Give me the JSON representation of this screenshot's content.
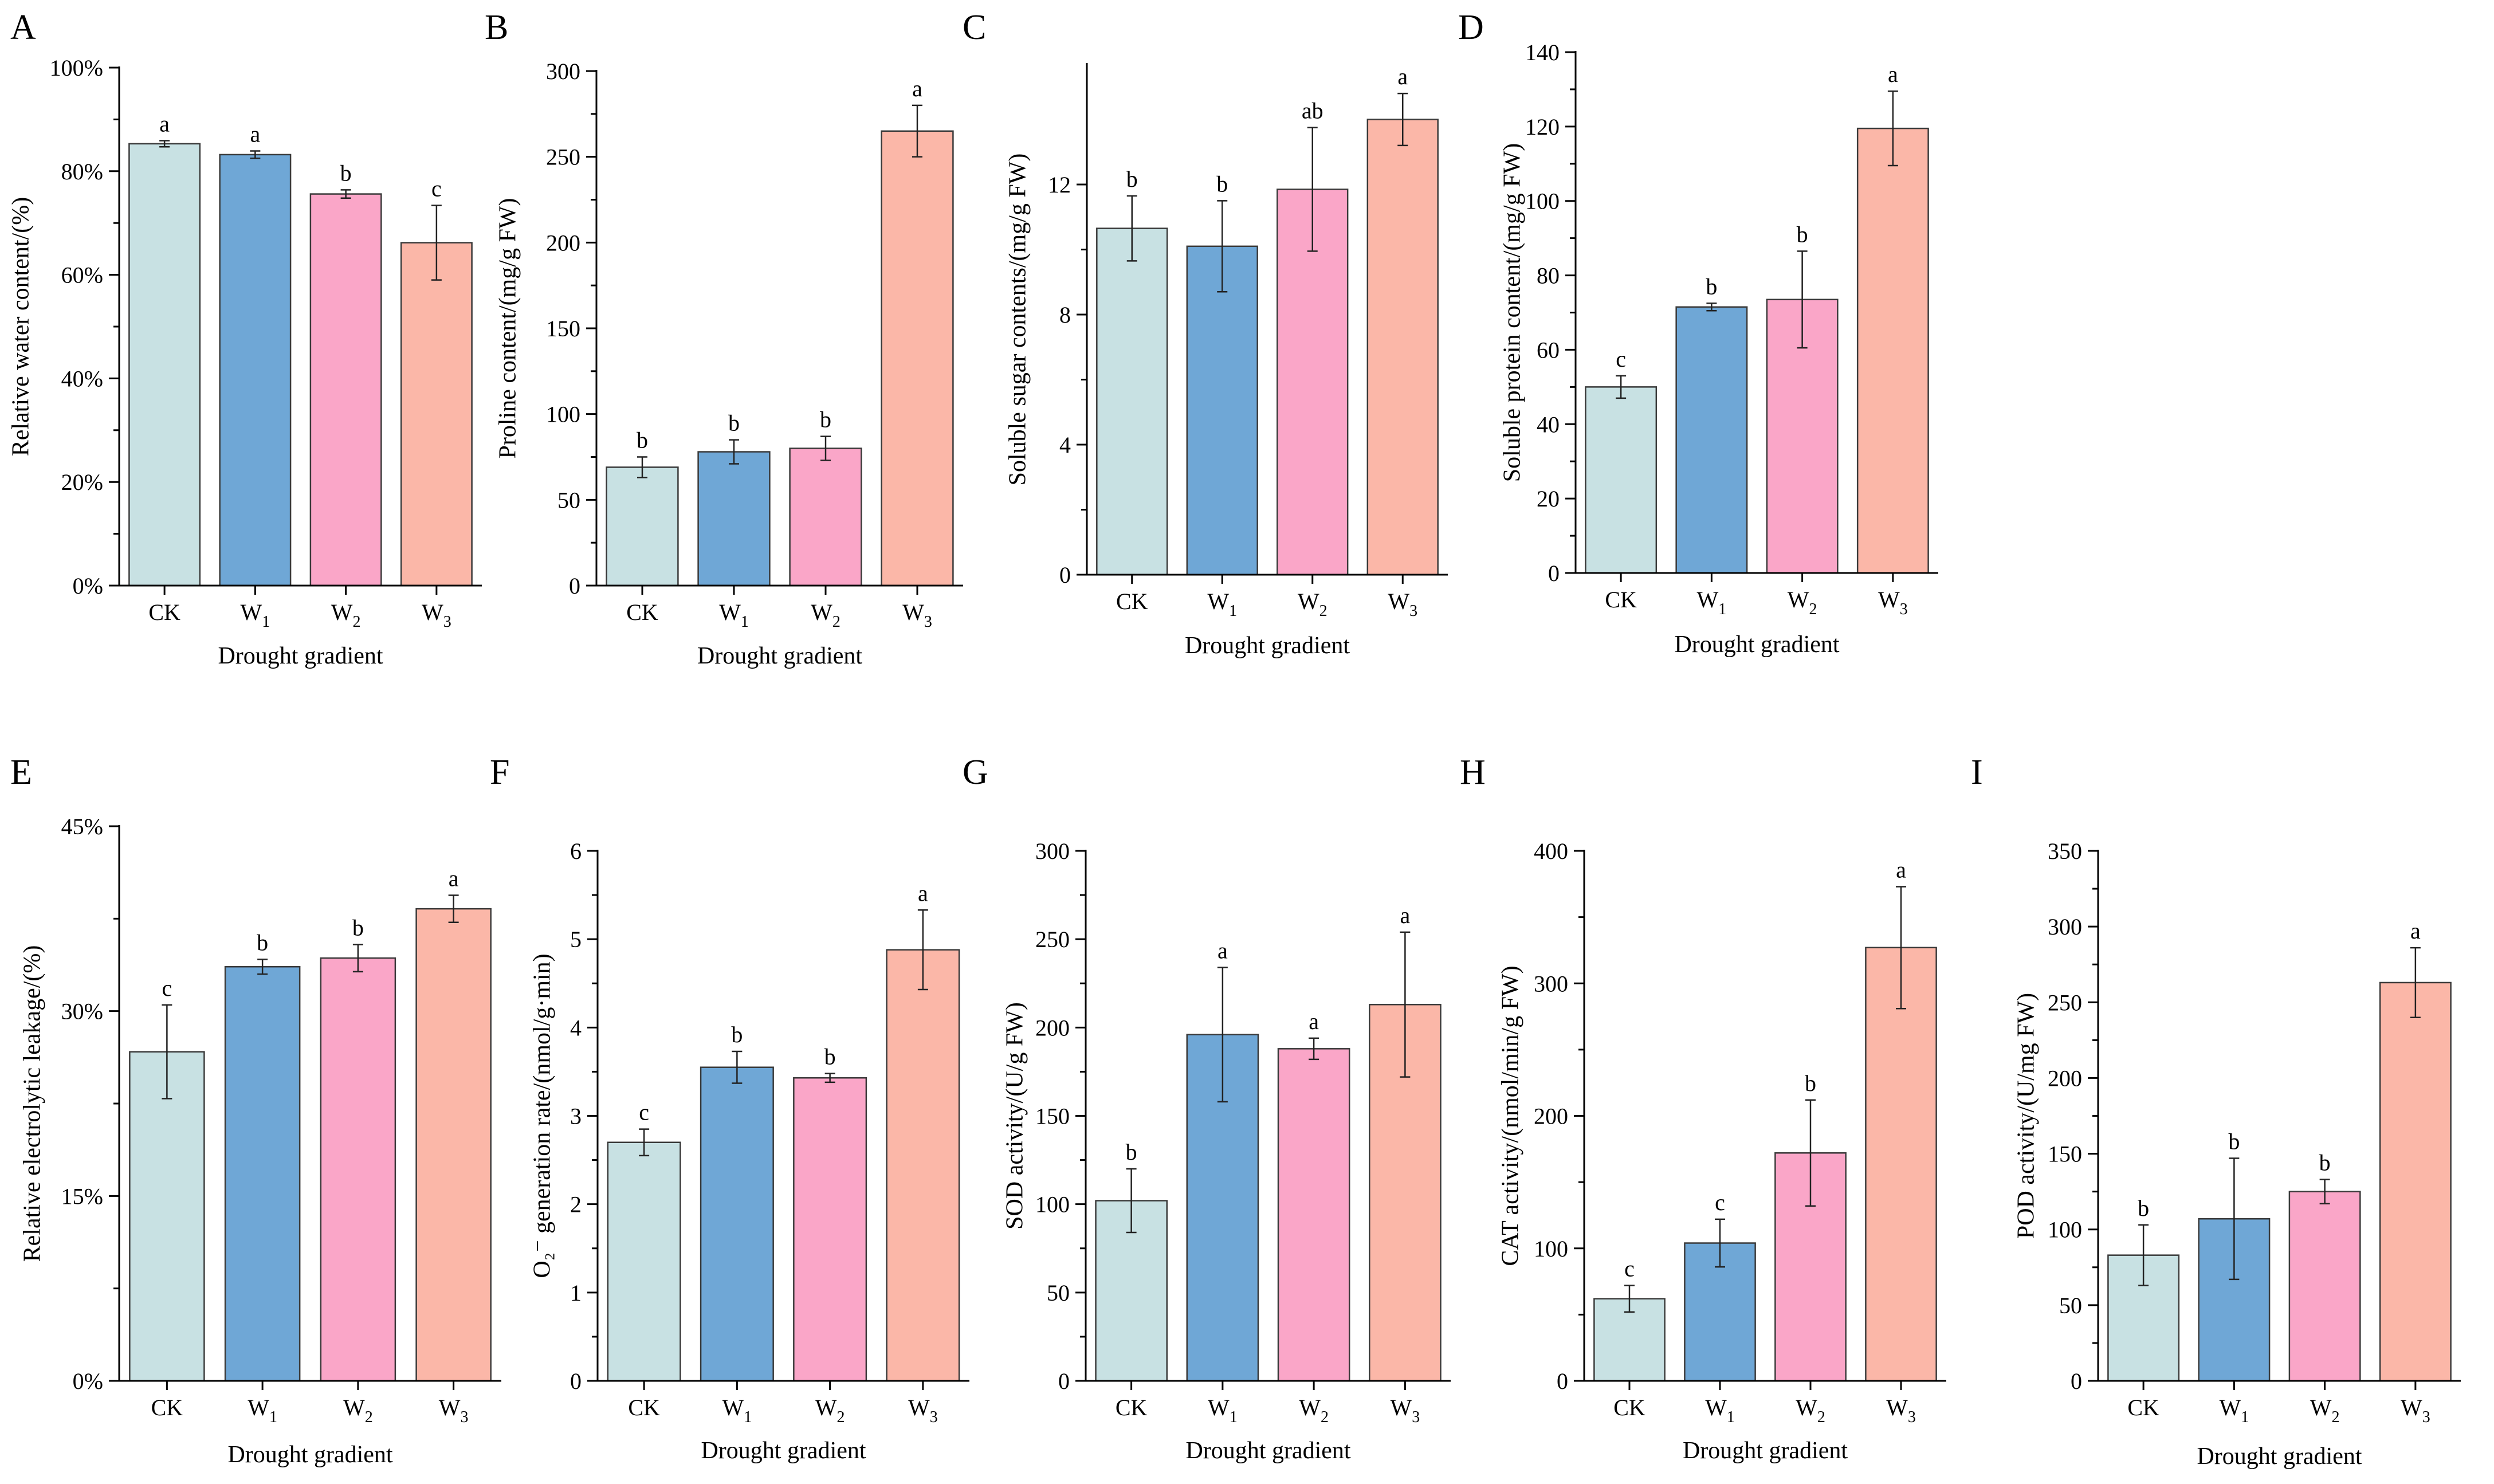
{
  "colors": {
    "CK": "#c8e1e3",
    "W1": "#6fa7d6",
    "W2": "#faa6c8",
    "W3": "#fbb7a8",
    "edge": "#3a3a3a"
  },
  "category_labels": [
    {
      "base": "CK",
      "sub": ""
    },
    {
      "base": "W",
      "sub": "1"
    },
    {
      "base": "W",
      "sub": "2"
    },
    {
      "base": "W",
      "sub": "3"
    }
  ],
  "chart_data": [
    {
      "id": "A",
      "letter": "A",
      "type": "bar",
      "categories": [
        "CK",
        "W1",
        "W2",
        "W3"
      ],
      "values": [
        85.3,
        83.2,
        75.6,
        66.2
      ],
      "errors": [
        0.6,
        0.7,
        0.8,
        7.2
      ],
      "significance": [
        "a",
        "a",
        "b",
        "c"
      ],
      "ylabel": "Relative water content/(%)",
      "xlabel": "Drought gradient",
      "ylim": [
        0,
        100
      ],
      "ticks": [
        0,
        20,
        40,
        60,
        80,
        100
      ],
      "tick_labels": [
        "0%",
        "20%",
        "40%",
        "60%",
        "80%",
        "100%"
      ]
    },
    {
      "id": "B",
      "letter": "B",
      "type": "bar",
      "categories": [
        "CK",
        "W1",
        "W2",
        "W3"
      ],
      "values": [
        69,
        78,
        80,
        265
      ],
      "errors": [
        6,
        7,
        7,
        15
      ],
      "significance": [
        "b",
        "b",
        "b",
        "a"
      ],
      "ylabel": "Proline content/(mg/g FW)",
      "xlabel": "Drought gradient",
      "ylim": [
        0,
        300
      ],
      "ticks": [
        0,
        50,
        100,
        150,
        200,
        250,
        300
      ],
      "tick_labels": [
        "0",
        "50",
        "100",
        "150",
        "200",
        "250",
        "300"
      ]
    },
    {
      "id": "C",
      "letter": "C",
      "type": "bar",
      "categories": [
        "CK",
        "W1",
        "W2",
        "W3"
      ],
      "values": [
        10.65,
        10.1,
        11.85,
        14.0
      ],
      "errors": [
        1.0,
        1.4,
        1.9,
        0.8
      ],
      "significance": [
        "b",
        "b",
        "ab",
        "a"
      ],
      "ylabel": "Soluble sugar contents/(mg/g FW)",
      "xlabel": "Drought gradient",
      "ylim": [
        0,
        15.7
      ],
      "ticks": [
        0,
        4,
        8,
        12
      ],
      "tick_labels": [
        "0",
        "4",
        "8",
        "12"
      ]
    },
    {
      "id": "D",
      "letter": "D",
      "type": "bar",
      "categories": [
        "CK",
        "W1",
        "W2",
        "W3"
      ],
      "values": [
        50,
        71.5,
        73.5,
        119.5
      ],
      "errors": [
        3,
        1,
        13,
        10
      ],
      "significance": [
        "c",
        "b",
        "b",
        "a"
      ],
      "ylabel": "Soluble protein content/(mg/g FW)",
      "xlabel": "Drought gradient",
      "ylim": [
        0,
        140
      ],
      "ticks": [
        0,
        20,
        40,
        60,
        80,
        100,
        120,
        140
      ],
      "tick_labels": [
        "0",
        "20",
        "40",
        "60",
        "80",
        "100",
        "120",
        "140"
      ]
    },
    {
      "id": "E",
      "letter": "E",
      "type": "bar",
      "categories": [
        "CK",
        "W1",
        "W2",
        "W3"
      ],
      "values": [
        26.7,
        33.6,
        34.3,
        38.3
      ],
      "errors": [
        3.8,
        0.6,
        1.1,
        1.1
      ],
      "significance": [
        "c",
        "b",
        "b",
        "a"
      ],
      "ylabel": "Relative electrolytic leakage/(%)",
      "xlabel": "Drought gradient",
      "ylim": [
        0,
        45
      ],
      "ticks": [
        0,
        15,
        30,
        45
      ],
      "tick_labels": [
        "0%",
        "15%",
        "30%",
        "45%"
      ]
    },
    {
      "id": "F",
      "letter": "F",
      "type": "bar",
      "categories": [
        "CK",
        "W1",
        "W2",
        "W3"
      ],
      "values": [
        2.7,
        3.55,
        3.43,
        4.88
      ],
      "errors": [
        0.15,
        0.18,
        0.05,
        0.45
      ],
      "significance": [
        "c",
        "b",
        "b",
        "a"
      ],
      "ylabel": "O₂⁻ generation rate/(nmol/g·min)",
      "xlabel": "Drought gradient",
      "ylim": [
        0,
        6
      ],
      "ticks": [
        0,
        1,
        2,
        3,
        4,
        5,
        6
      ],
      "tick_labels": [
        "0",
        "1",
        "2",
        "3",
        "4",
        "5",
        "6"
      ]
    },
    {
      "id": "G",
      "letter": "G",
      "type": "bar",
      "categories": [
        "CK",
        "W1",
        "W2",
        "W3"
      ],
      "values": [
        102,
        196,
        188,
        213
      ],
      "errors": [
        18,
        38,
        6,
        41
      ],
      "significance": [
        "b",
        "a",
        "a",
        "a"
      ],
      "ylabel": "SOD  activity/(U/g FW)",
      "xlabel": "Drought gradient",
      "ylim": [
        0,
        300
      ],
      "ticks": [
        0,
        50,
        100,
        150,
        200,
        250,
        300
      ],
      "tick_labels": [
        "0",
        "50",
        "100",
        "150",
        "200",
        "250",
        "300"
      ]
    },
    {
      "id": "H",
      "letter": "H",
      "type": "bar",
      "categories": [
        "CK",
        "W1",
        "W2",
        "W3"
      ],
      "values": [
        62,
        104,
        172,
        327
      ],
      "errors": [
        10,
        18,
        40,
        46
      ],
      "significance": [
        "c",
        "c",
        "b",
        "a"
      ],
      "ylabel": "CAT  activity/(nmol/min/g FW)",
      "xlabel": "Drought gradient",
      "ylim": [
        0,
        400
      ],
      "ticks": [
        0,
        100,
        200,
        300,
        400
      ],
      "tick_labels": [
        "0",
        "100",
        "200",
        "300",
        "400"
      ]
    },
    {
      "id": "I",
      "letter": "I",
      "type": "bar",
      "categories": [
        "CK",
        "W1",
        "W2",
        "W3"
      ],
      "values": [
        83,
        107,
        125,
        263
      ],
      "errors": [
        20,
        40,
        8,
        23
      ],
      "significance": [
        "b",
        "b",
        "b",
        "a"
      ],
      "ylabel": "POD  activity/(U/mg FW)",
      "xlabel": "Drought gradient",
      "ylim": [
        0,
        350
      ],
      "ticks": [
        0,
        50,
        100,
        150,
        200,
        250,
        300,
        350
      ],
      "tick_labels": [
        "0",
        "50",
        "100",
        "150",
        "200",
        "250",
        "300",
        "350"
      ]
    }
  ]
}
